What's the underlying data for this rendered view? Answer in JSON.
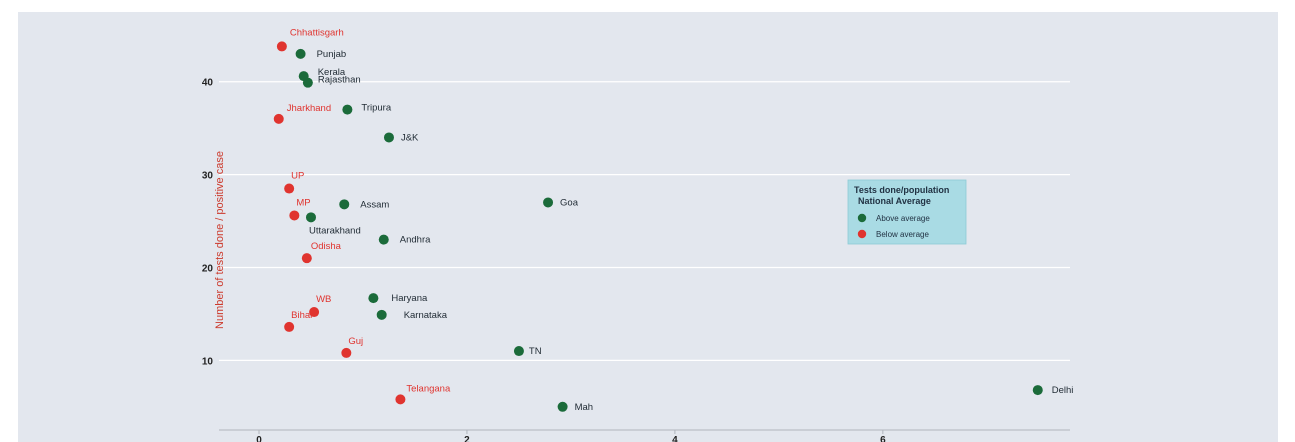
{
  "chart_data": {
    "type": "scatter",
    "title": "",
    "xlabel": "",
    "ylabel": "Number of tests done / positive case",
    "xlim": [
      0,
      7.8
    ],
    "ylim": [
      2.5,
      46
    ],
    "x_ticks": [
      0,
      2,
      4,
      6
    ],
    "y_ticks": [
      10,
      20,
      30,
      40
    ],
    "grid": true,
    "colors": {
      "above": "#1b6b3a",
      "below": "#e0342f"
    },
    "legend": {
      "title_line1": "Tests done/population",
      "title_line2": "National Average",
      "placement": "right",
      "items": [
        {
          "label": "Above average",
          "group": "above"
        },
        {
          "label": "Below average",
          "group": "below"
        }
      ]
    },
    "points": [
      {
        "name": "Chhattisgarh",
        "x": 0.22,
        "y": 43.8,
        "group": "below"
      },
      {
        "name": "Punjab",
        "x": 0.4,
        "y": 43.0,
        "group": "above"
      },
      {
        "name": "Kerala",
        "x": 0.43,
        "y": 40.6,
        "group": "above"
      },
      {
        "name": "Rajasthan",
        "x": 0.47,
        "y": 39.9,
        "group": "above"
      },
      {
        "name": "Jharkhand",
        "x": 0.19,
        "y": 36.0,
        "group": "below"
      },
      {
        "name": "Tripura",
        "x": 0.85,
        "y": 37.0,
        "group": "above"
      },
      {
        "name": "J&K",
        "x": 1.25,
        "y": 34.0,
        "group": "above"
      },
      {
        "name": "UP",
        "x": 0.29,
        "y": 28.5,
        "group": "below"
      },
      {
        "name": "MP",
        "x": 0.34,
        "y": 25.6,
        "group": "below"
      },
      {
        "name": "Assam",
        "x": 0.82,
        "y": 26.8,
        "group": "above"
      },
      {
        "name": "Uttarakhand",
        "x": 0.5,
        "y": 25.4,
        "group": "above"
      },
      {
        "name": "Goa",
        "x": 2.78,
        "y": 27.0,
        "group": "above"
      },
      {
        "name": "Andhra",
        "x": 1.2,
        "y": 23.0,
        "group": "above"
      },
      {
        "name": "Odisha",
        "x": 0.46,
        "y": 21.0,
        "group": "below"
      },
      {
        "name": "Haryana",
        "x": 1.1,
        "y": 16.7,
        "group": "above"
      },
      {
        "name": "WB",
        "x": 0.53,
        "y": 15.2,
        "group": "below"
      },
      {
        "name": "Karnataka",
        "x": 1.18,
        "y": 14.9,
        "group": "above"
      },
      {
        "name": "Bihar",
        "x": 0.29,
        "y": 13.6,
        "group": "below"
      },
      {
        "name": "Guj",
        "x": 0.84,
        "y": 10.8,
        "group": "below"
      },
      {
        "name": "TN",
        "x": 2.5,
        "y": 11.0,
        "group": "above"
      },
      {
        "name": "Telangana",
        "x": 1.36,
        "y": 5.8,
        "group": "below"
      },
      {
        "name": "Mah",
        "x": 2.92,
        "y": 5.0,
        "group": "above"
      },
      {
        "name": "Delhi",
        "x": 7.49,
        "y": 6.8,
        "group": "above"
      }
    ]
  }
}
